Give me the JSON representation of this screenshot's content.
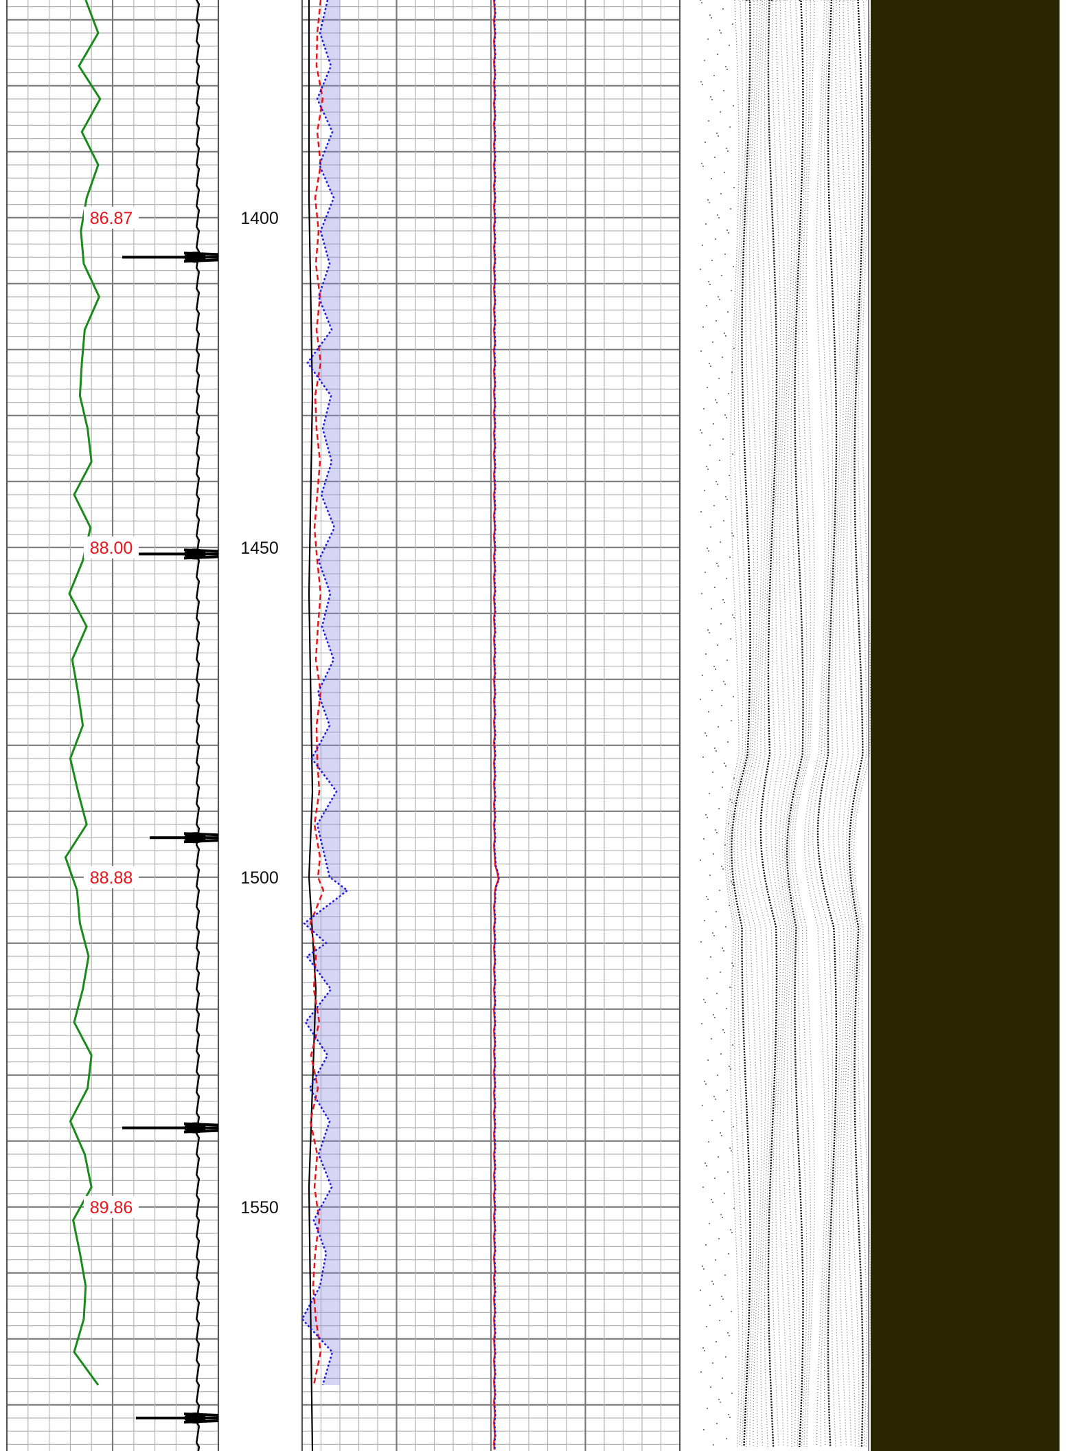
{
  "chart_data": {
    "type": "line",
    "depth_labels": [
      {
        "depth": 1400,
        "text": "1400"
      },
      {
        "depth": 1450,
        "text": "1450"
      },
      {
        "depth": 1500,
        "text": "1500"
      },
      {
        "depth": 1550,
        "text": "1550"
      }
    ],
    "inclination_labels": [
      {
        "depth": 1400,
        "text": "86.87"
      },
      {
        "depth": 1450,
        "text": "88.00"
      },
      {
        "depth": 1500,
        "text": "88.88"
      },
      {
        "depth": 1550,
        "text": "89.86"
      }
    ],
    "ylim": [
      1367,
      1587
    ],
    "grid": true,
    "colors": {
      "grid_minor": "#b4b4b4",
      "grid_major": "#7a7a7a",
      "green_curve": "#1a8a1a",
      "black_curve": "#000000",
      "red_curve": "#e8141b",
      "blue_curve": "#1a1ae6",
      "blue_fill": "#8a8ae0",
      "image_track": "#2a2604"
    },
    "series": [
      {
        "key": "green",
        "x": [
          0.82,
          0.95,
          0.75,
          0.97,
          0.78,
          0.95,
          0.83,
          0.77,
          0.8,
          0.96,
          0.81,
          0.78,
          0.76,
          0.84,
          0.88,
          0.7,
          0.87,
          0.79,
          0.65,
          0.83,
          0.68,
          0.74,
          0.79,
          0.66,
          0.74,
          0.83,
          0.61,
          0.73,
          0.76,
          0.85,
          0.79,
          0.7,
          0.88,
          0.84,
          0.66,
          0.81,
          0.88,
          0.69,
          0.76,
          0.82,
          0.8,
          0.7,
          0.95
        ],
        "y": [
          1367,
          1372,
          1377,
          1382,
          1387,
          1392,
          1397,
          1402,
          1407,
          1412,
          1417,
          1422,
          1427,
          1432,
          1437,
          1442,
          1447,
          1452,
          1457,
          1462,
          1467,
          1472,
          1477,
          1482,
          1487,
          1492,
          1497,
          1502,
          1507,
          1512,
          1517,
          1522,
          1527,
          1532,
          1537,
          1542,
          1547,
          1552,
          1557,
          1562,
          1567,
          1572,
          1577
        ]
      },
      {
        "key": "red",
        "x": [
          0.27,
          0.22,
          0.21,
          0.3,
          0.22,
          0.27,
          0.19,
          0.24,
          0.2,
          0.26,
          0.21,
          0.27,
          0.19,
          0.21,
          0.26,
          0.22,
          0.18,
          0.22,
          0.27,
          0.23,
          0.2,
          0.27,
          0.21,
          0.22,
          0.25,
          0.18,
          0.26,
          0.23,
          0.31,
          0.12,
          0.2,
          0.17,
          0.25,
          0.13,
          0.23,
          0.12,
          0.22,
          0.18,
          0.25,
          0.19,
          0.16,
          0.2,
          0.27,
          0.17
        ],
        "y": [
          1367,
          1372,
          1377,
          1382,
          1387,
          1392,
          1397,
          1402,
          1407,
          1412,
          1417,
          1422,
          1427,
          1432,
          1437,
          1442,
          1447,
          1452,
          1457,
          1462,
          1467,
          1472,
          1477,
          1482,
          1487,
          1492,
          1497,
          1500,
          1502,
          1507,
          1512,
          1517,
          1522,
          1527,
          1532,
          1537,
          1542,
          1547,
          1552,
          1557,
          1562,
          1567,
          1572,
          1577
        ]
      },
      {
        "key": "blue",
        "x": [
          0.37,
          0.26,
          0.42,
          0.22,
          0.44,
          0.25,
          0.46,
          0.27,
          0.4,
          0.24,
          0.43,
          0.08,
          0.42,
          0.3,
          0.43,
          0.28,
          0.47,
          0.24,
          0.41,
          0.29,
          0.46,
          0.23,
          0.4,
          0.14,
          0.5,
          0.22,
          0.66,
          0.4,
          0.03,
          0.35,
          0.07,
          0.42,
          0.05,
          0.37,
          0.11,
          0.4,
          0.24,
          0.43,
          0.17,
          0.35,
          0.26,
          0.0,
          0.44,
          0.3
        ],
        "y": [
          1367,
          1372,
          1377,
          1382,
          1387,
          1392,
          1397,
          1402,
          1407,
          1412,
          1417,
          1422,
          1427,
          1432,
          1437,
          1442,
          1447,
          1452,
          1457,
          1462,
          1467,
          1472,
          1477,
          1482,
          1487,
          1492,
          1502,
          1500,
          1507,
          1510,
          1512,
          1517,
          1522,
          1527,
          1532,
          1537,
          1542,
          1547,
          1552,
          1557,
          1562,
          1567,
          1572,
          1577
        ]
      },
      {
        "key": "black_track2",
        "x": [
          0.55,
          0.55,
          0.55,
          0.55,
          0.55,
          0.55,
          0.55,
          0.55
        ],
        "y": [
          1367,
          1397,
          1427,
          1457,
          1487,
          1517,
          1547,
          1587
        ],
        "spikes": [
          1406,
          1451,
          1494,
          1538,
          1582
        ]
      },
      {
        "key": "flat_track",
        "x": [
          0.02,
          0.02,
          0.03,
          0.02,
          0.03,
          0.02,
          0.04,
          0.02,
          0.03
        ],
        "y": [
          1367,
          1397,
          1427,
          1457,
          1487,
          1500,
          1517,
          1547,
          1587
        ]
      }
    ]
  }
}
